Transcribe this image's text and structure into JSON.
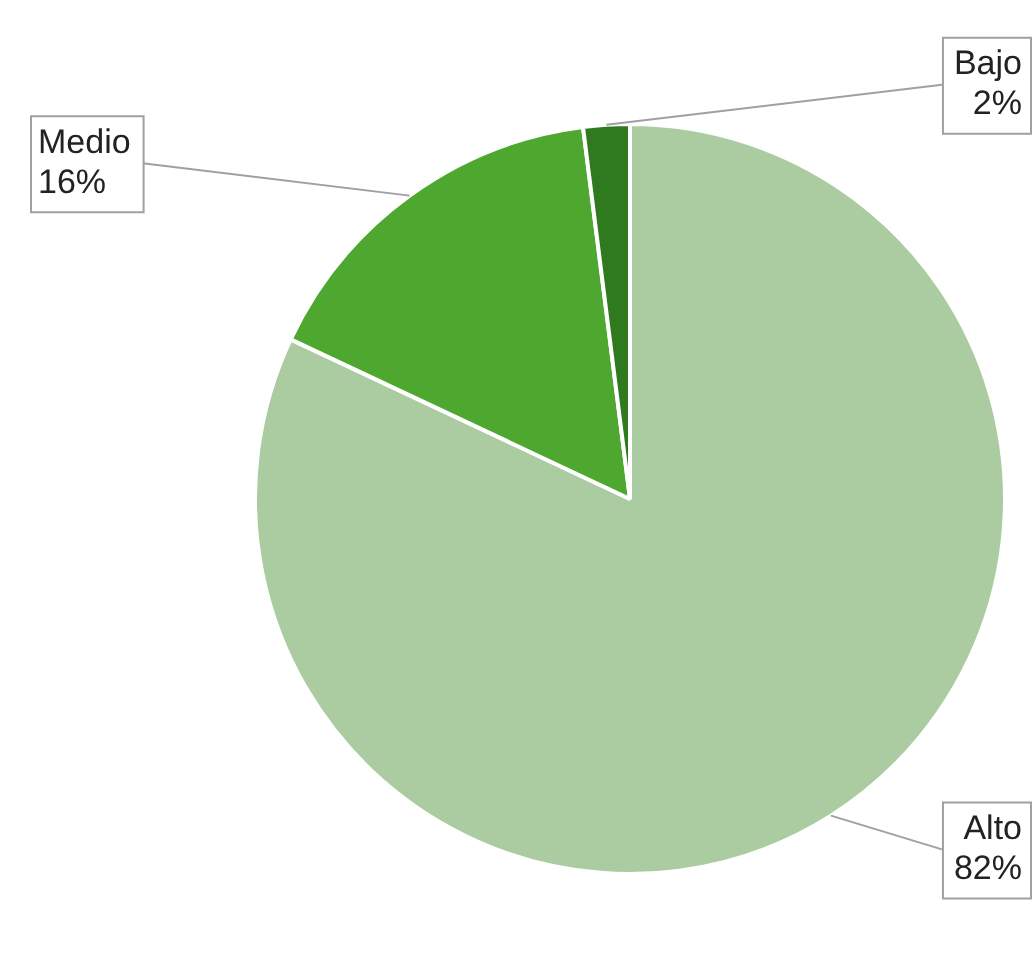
{
  "chart_data": {
    "type": "pie",
    "categories": [
      "Alto",
      "Medio",
      "Bajo"
    ],
    "values": [
      82,
      16,
      2
    ],
    "colors": [
      "#abcba0",
      "#4ea72e",
      "#2f7a1f"
    ],
    "value_labels": [
      "82%",
      "16%",
      "2%"
    ],
    "legend": false
  }
}
